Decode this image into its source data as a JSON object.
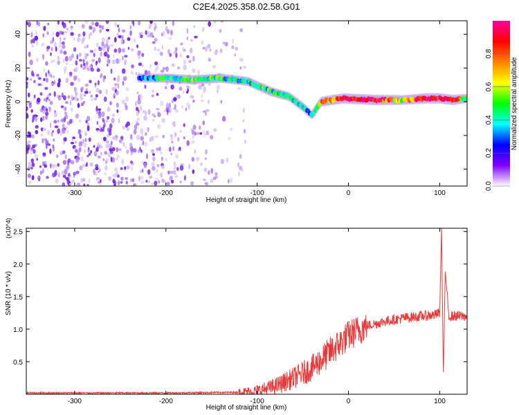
{
  "title": "C2E4.2025.358.02.58.G01",
  "chart_data": [
    {
      "type": "heatmap",
      "name": "spectrogram",
      "xlabel": "Height of straight line (km)",
      "ylabel": "Frequency (Hz)",
      "xlim": [
        -353,
        130
      ],
      "ylim": [
        -50,
        48
      ],
      "xticks": [
        -300,
        -200,
        -100,
        0,
        100
      ],
      "xtick_labels": [
        "-300",
        "-200",
        "-100",
        "0",
        "100"
      ],
      "yticks": [
        -40,
        -20,
        0,
        20,
        40
      ],
      "ytick_labels": [
        "-40",
        "-20",
        "0",
        "20",
        "40"
      ],
      "colorbar": {
        "label": "Normalized spectral amplitude",
        "range": [
          0,
          1
        ],
        "ticks": [
          0.0,
          0.2,
          0.4,
          0.6,
          0.8
        ],
        "tick_labels": [
          "0.0",
          "0.2",
          "0.4",
          "0.6",
          "0.8"
        ],
        "colors": [
          "#ffffff",
          "#8000ff",
          "#0000ff",
          "#00ffff",
          "#00ff00",
          "#ffff00",
          "#ff8000",
          "#ff0000",
          "#ff00a0"
        ]
      },
      "signal_track": [
        {
          "x": -230,
          "y": 14,
          "amp": 0.25
        },
        {
          "x": -200,
          "y": 14,
          "amp": 0.45
        },
        {
          "x": -170,
          "y": 13,
          "amp": 0.5
        },
        {
          "x": -140,
          "y": 14,
          "amp": 0.45
        },
        {
          "x": -110,
          "y": 12,
          "amp": 0.4
        },
        {
          "x": -85,
          "y": 6,
          "amp": 0.45
        },
        {
          "x": -65,
          "y": 3,
          "amp": 0.4
        },
        {
          "x": -50,
          "y": -3,
          "amp": 0.35
        },
        {
          "x": -40,
          "y": -8,
          "amp": 0.3
        },
        {
          "x": -30,
          "y": 0,
          "amp": 0.7
        },
        {
          "x": -5,
          "y": 2,
          "amp": 0.85
        },
        {
          "x": 30,
          "y": 1,
          "amp": 0.95
        },
        {
          "x": 60,
          "y": 1,
          "amp": 0.6
        },
        {
          "x": 85,
          "y": 2,
          "amp": 0.95
        },
        {
          "x": 100,
          "y": 2,
          "amp": 0.9
        },
        {
          "x": 115,
          "y": 1,
          "amp": 0.9
        },
        {
          "x": 130,
          "y": 2,
          "amp": 0.4
        }
      ],
      "noise_region": [
        -353,
        -110
      ]
    },
    {
      "type": "line",
      "name": "snr",
      "xlabel": "Height of straight line (km)",
      "ylabel": "SNR (10 * v/v)",
      "y_multiplier": "(x10^4)",
      "xlim": [
        -353,
        130
      ],
      "ylim": [
        0,
        2.55
      ],
      "xticks": [
        -300,
        -200,
        -100,
        0,
        100
      ],
      "xtick_labels": [
        "-300",
        "-200",
        "-100",
        "0",
        "100"
      ],
      "yticks": [
        0.5,
        1.0,
        1.5,
        2.0,
        2.5
      ],
      "ytick_labels": [
        "0.5",
        "1.0",
        "1.5",
        "2.0",
        "2.5"
      ],
      "color": "#e8393a",
      "trend": {
        "x": [
          -353,
          -200,
          -120,
          -100,
          -80,
          -60,
          -40,
          -20,
          0,
          20,
          40,
          60,
          80,
          95,
          100,
          102,
          104,
          106,
          110,
          130
        ],
        "y": [
          0.02,
          0.02,
          0.03,
          0.05,
          0.12,
          0.25,
          0.4,
          0.65,
          0.9,
          1.05,
          1.12,
          1.17,
          1.2,
          1.22,
          1.25,
          2.55,
          0.25,
          1.9,
          1.2,
          1.2
        ]
      }
    }
  ]
}
